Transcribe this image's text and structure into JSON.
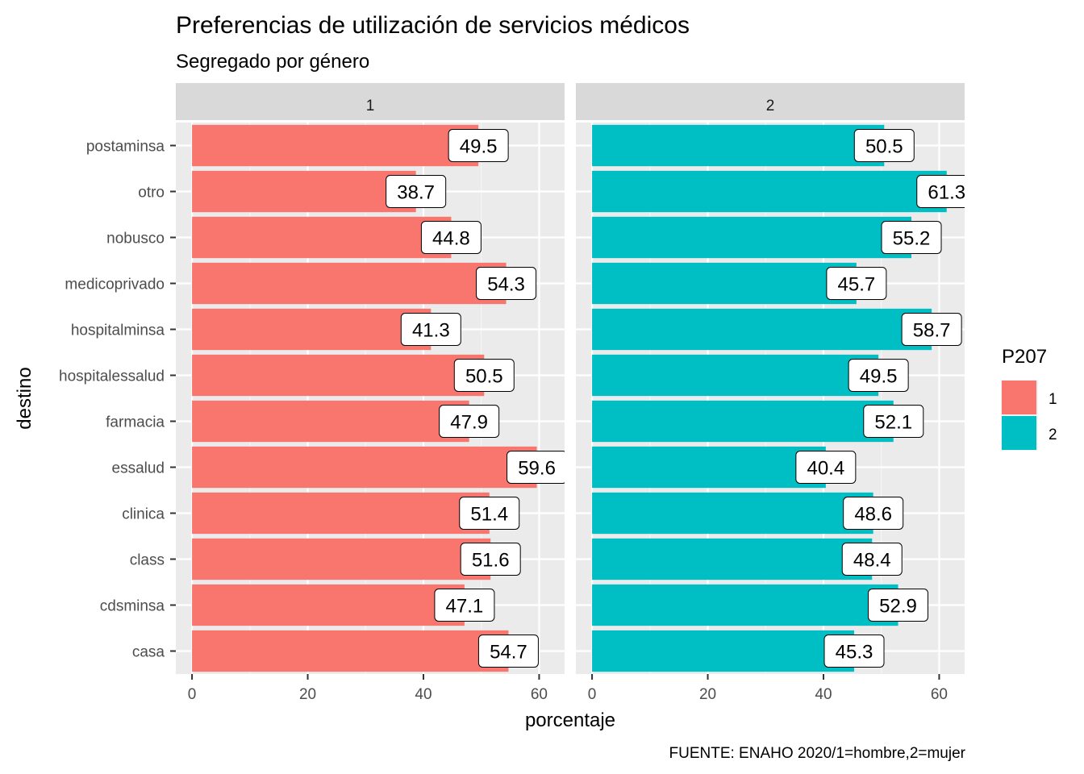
{
  "chart_data": {
    "type": "bar",
    "orientation": "horizontal",
    "title": "Preferencias de utilización de servicios médicos",
    "subtitle": "Segregado por género",
    "caption": "FUENTE: ENAHO 2020/1=hombre,2=mujer",
    "xlabel": "porcentaje",
    "ylabel": "destino",
    "xlim": [
      -2.8,
      64.4
    ],
    "xticks": [
      0,
      20,
      40,
      60
    ],
    "xtick_labels": [
      "0",
      "20",
      "40",
      "60"
    ],
    "grid": true,
    "categories": [
      "postaminsa",
      "otro",
      "nobusco",
      "medicoprivado",
      "hospitalminsa",
      "hospitalessalud",
      "farmacia",
      "essalud",
      "clinica",
      "class",
      "cdsminsa",
      "casa"
    ],
    "facets": [
      {
        "strip": "1",
        "fill_group": "1",
        "values": [
          49.5,
          38.7,
          44.8,
          54.3,
          41.3,
          50.5,
          47.9,
          59.6,
          51.4,
          51.6,
          47.1,
          54.7
        ],
        "labels": [
          "49.5",
          "38.7",
          "44.8",
          "54.3",
          "41.3",
          "50.5",
          "47.9",
          "59.6",
          "51.4",
          "51.6",
          "47.1",
          "54.7"
        ]
      },
      {
        "strip": "2",
        "fill_group": "2",
        "values": [
          50.5,
          61.3,
          55.2,
          45.7,
          58.7,
          49.5,
          52.1,
          40.4,
          48.6,
          48.4,
          52.9,
          45.3
        ],
        "labels": [
          "50.5",
          "61.3",
          "55.2",
          "45.7",
          "58.7",
          "49.5",
          "52.1",
          "40.4",
          "48.6",
          "48.4",
          "52.9",
          "45.3"
        ]
      }
    ],
    "legend": {
      "title": "P207",
      "position": "right",
      "entries": [
        {
          "label": "1",
          "color": "#F8766D"
        },
        {
          "label": "2",
          "color": "#00BFC4"
        }
      ]
    }
  },
  "colors": {
    "panel_bg": "#EBEBEB",
    "strip_bg": "#D9D9D9",
    "grid_major": "#FFFFFF",
    "grid_minor": "#F5F5F5"
  }
}
